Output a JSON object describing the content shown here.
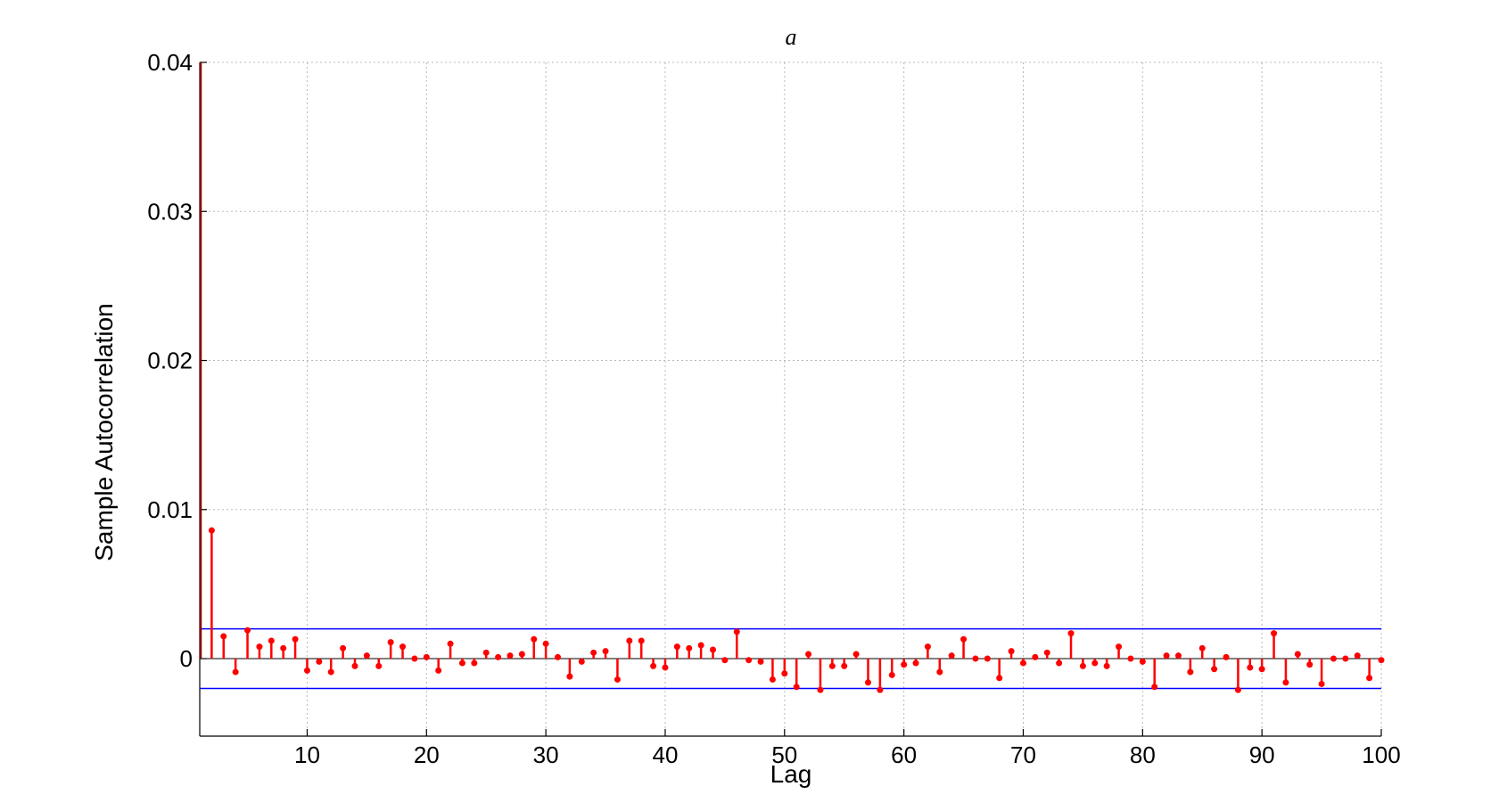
{
  "chart_data": {
    "type": "stem",
    "title": "a",
    "xlabel": "Lag",
    "ylabel": "Sample Autocorrelation",
    "xlim": [
      1,
      100
    ],
    "ylim": [
      -0.0052,
      0.04
    ],
    "xticks": [
      10,
      20,
      30,
      40,
      50,
      60,
      70,
      80,
      90,
      100
    ],
    "yticks": [
      0,
      0.01,
      0.02,
      0.03,
      0.04
    ],
    "ytick_labels": [
      "0",
      "0.01",
      "0.02",
      "0.03",
      "0.04"
    ],
    "grid": true,
    "confidence_bounds": [
      0.002,
      -0.002
    ],
    "lag0_value": 1,
    "lags": [
      2,
      3,
      4,
      5,
      6,
      7,
      8,
      9,
      10,
      11,
      12,
      13,
      14,
      15,
      16,
      17,
      18,
      19,
      20,
      21,
      22,
      23,
      24,
      25,
      26,
      27,
      28,
      29,
      30,
      31,
      32,
      33,
      34,
      35,
      36,
      37,
      38,
      39,
      40,
      41,
      42,
      43,
      44,
      45,
      46,
      47,
      48,
      49,
      50,
      51,
      52,
      53,
      54,
      55,
      56,
      57,
      58,
      59,
      60,
      61,
      62,
      63,
      64,
      65,
      66,
      67,
      68,
      69,
      70,
      71,
      72,
      73,
      74,
      75,
      76,
      77,
      78,
      79,
      80,
      81,
      82,
      83,
      84,
      85,
      86,
      87,
      88,
      89,
      90,
      91,
      92,
      93,
      94,
      95,
      96,
      97,
      98,
      99,
      100
    ],
    "values": [
      0.0086,
      0.0015,
      -0.0009,
      0.0019,
      0.0008,
      0.0012,
      0.0007,
      0.0013,
      -0.0008,
      -0.0002,
      -0.0009,
      0.0007,
      -0.0005,
      0.0002,
      -0.0005,
      0.0011,
      0.0008,
      0.0,
      0.0001,
      -0.0008,
      0.001,
      -0.0003,
      -0.0003,
      0.0004,
      0.0001,
      0.0002,
      0.0003,
      0.0013,
      0.001,
      0.0001,
      -0.0012,
      -0.0002,
      0.0004,
      0.0005,
      -0.0014,
      0.0012,
      0.0012,
      -0.0005,
      -0.0006,
      0.0008,
      0.0007,
      0.0009,
      0.0006,
      -0.0001,
      0.0018,
      -0.0001,
      -0.0002,
      -0.0014,
      -0.001,
      -0.0019,
      0.0003,
      -0.0021,
      -0.0005,
      -0.0005,
      0.0003,
      -0.0016,
      -0.0021,
      -0.0011,
      -0.0004,
      -0.0003,
      0.0008,
      -0.0009,
      0.0002,
      0.0013,
      0.0,
      0.0,
      -0.0013,
      0.0005,
      -0.0003,
      0.0001,
      0.0004,
      -0.0003,
      0.0017,
      -0.0005,
      -0.0003,
      -0.0005,
      0.0008,
      0.0,
      -0.0002,
      -0.0019,
      0.0002,
      0.0002,
      -0.0009,
      0.0007,
      -0.0007,
      0.0001,
      -0.0021,
      -0.0006,
      -0.0007,
      0.0017,
      -0.0016,
      0.0003,
      -0.0004,
      -0.0017,
      0.0,
      0.0,
      0.0002,
      -0.0013,
      -0.0001
    ]
  },
  "colors": {
    "stem": "#ff0000",
    "bound": "#0000ff",
    "lag0_line": "#8b0000"
  }
}
